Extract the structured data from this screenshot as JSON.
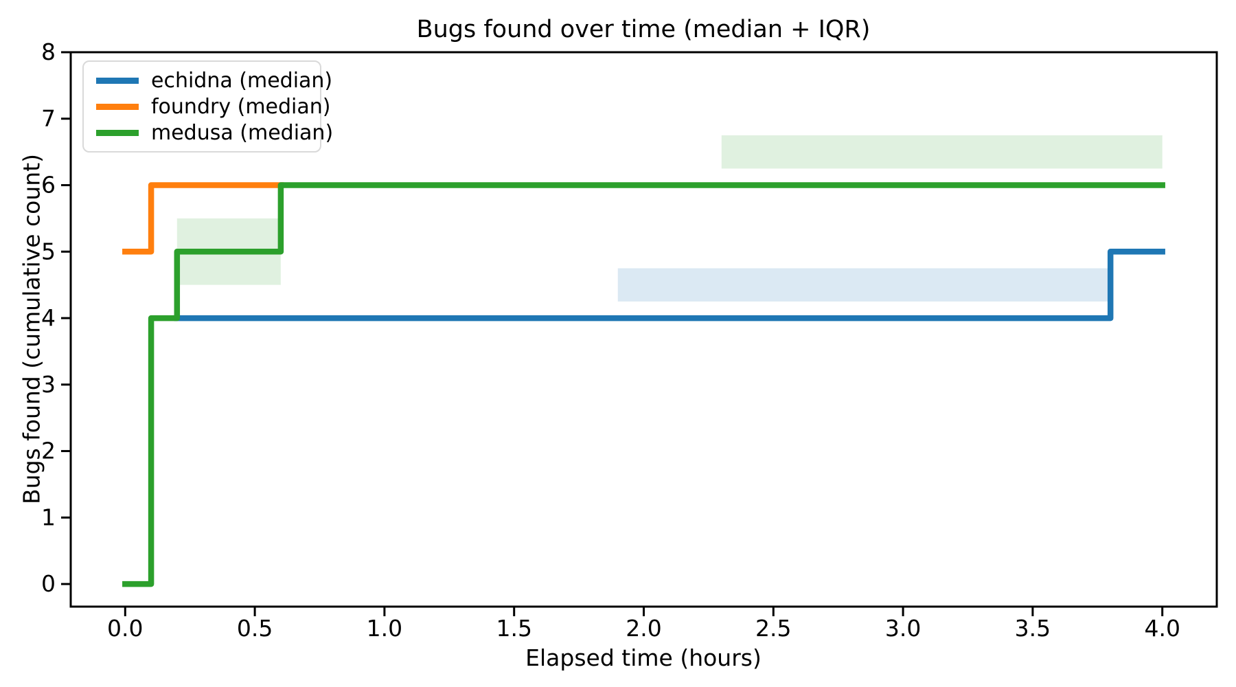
{
  "figure": {
    "title": "Bugs found over time (median + IQR)",
    "xlabel": "Elapsed time (hours)",
    "ylabel": "Bugs found (cumulative count)"
  },
  "legend": {
    "position": "upper left",
    "items": [
      {
        "label": "echidna (median)",
        "color": "#1f77b4"
      },
      {
        "label": "foundry (median)",
        "color": "#ff7f0e"
      },
      {
        "label": "medusa (median)",
        "color": "#2ca02c"
      }
    ]
  },
  "chart_data": {
    "type": "line",
    "subtype": "step-post-cumulative",
    "title": "Bugs found over time (median + IQR)",
    "xlabel": "Elapsed time (hours)",
    "ylabel": "Bugs found (cumulative count)",
    "xlim": [
      -0.21,
      4.21
    ],
    "ylim": [
      -0.34,
      8.0
    ],
    "xticks": [
      0.0,
      0.5,
      1.0,
      1.5,
      2.0,
      2.5,
      3.0,
      3.5,
      4.0
    ],
    "xtick_labels": [
      "0.0",
      "0.5",
      "1.0",
      "1.5",
      "2.0",
      "2.5",
      "3.0",
      "3.5",
      "4.0"
    ],
    "yticks": [
      0,
      1,
      2,
      3,
      4,
      5,
      6,
      7,
      8
    ],
    "ytick_labels": [
      "0",
      "1",
      "2",
      "3",
      "4",
      "5",
      "6",
      "7",
      "8"
    ],
    "grid": false,
    "legend_position": "upper left",
    "series": [
      {
        "name": "echidna (median)",
        "color": "#1f77b4",
        "line_width": 8.5,
        "vertices": [
          [
            0.2,
            4
          ],
          [
            3.8,
            4
          ],
          [
            3.8,
            5
          ],
          [
            4.0,
            5
          ]
        ],
        "iqr_bands": [
          {
            "x": [
              1.9,
              3.8
            ],
            "y": [
              4.25,
              4.75
            ],
            "opacity": 0.16
          }
        ]
      },
      {
        "name": "foundry (median)",
        "color": "#ff7f0e",
        "line_width": 8.5,
        "vertices": [
          [
            0.0,
            5
          ],
          [
            0.1,
            5
          ],
          [
            0.1,
            6
          ],
          [
            0.6,
            6
          ]
        ],
        "iqr_bands": []
      },
      {
        "name": "medusa (median)",
        "color": "#2ca02c",
        "line_width": 8.5,
        "vertices": [
          [
            0.0,
            0
          ],
          [
            0.1,
            0
          ],
          [
            0.1,
            4
          ],
          [
            0.2,
            4
          ],
          [
            0.2,
            5
          ],
          [
            0.6,
            5
          ],
          [
            0.6,
            6
          ],
          [
            4.0,
            6
          ]
        ],
        "iqr_bands": [
          {
            "x": [
              0.2,
              0.6
            ],
            "y": [
              4.5,
              5.5
            ],
            "opacity": 0.15
          },
          {
            "x": [
              2.3,
              4.0
            ],
            "y": [
              6.25,
              6.75
            ],
            "opacity": 0.15
          }
        ]
      }
    ],
    "style": {
      "spine_color": "#000000",
      "spine_width": 3,
      "tick_length": 14,
      "tick_width": 3,
      "tick_label_size": 33,
      "background": "#ffffff"
    }
  }
}
